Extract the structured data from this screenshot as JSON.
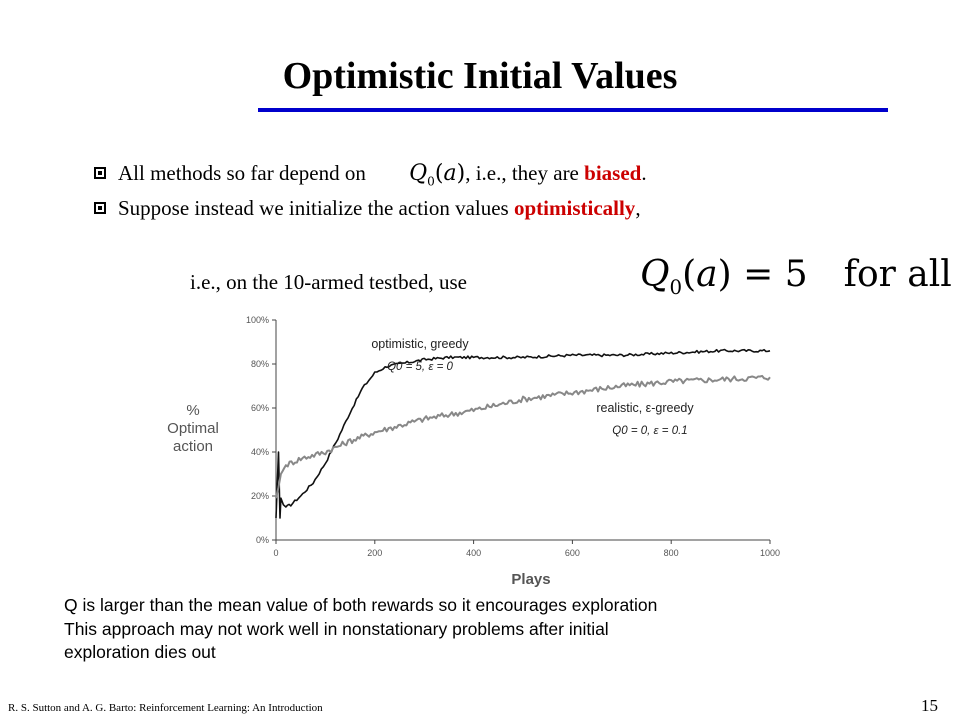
{
  "slide": {
    "title": "Optimistic Initial Values",
    "title_rule_color": "#0000cc",
    "emphasis_color": "#cc0000",
    "bullets": [
      {
        "before": "All methods so far depend on",
        "formula": "Q0(a)",
        "after": ", i.e., they are ",
        "emphasis": "biased",
        "end": "."
      },
      {
        "before": "Suppose instead we initialize the action values ",
        "emphasis": "optimistically",
        "end": ","
      }
    ],
    "ie_line": "i.e., on the 10-armed testbed, use",
    "big_formula": {
      "lhs": "Q0(a) = 5",
      "rhs": "for all a"
    },
    "notes": [
      "Q is larger than the mean value of both rewards so it encourages exploration",
      "This approach may not work well in nonstationary problems after initial",
      "exploration dies out"
    ],
    "footer": "R. S. Sutton and A. G. Barto: Reinforcement Learning: An Introduction",
    "page_number": "15"
  },
  "chart_data": {
    "type": "line",
    "xlabel": "Plays",
    "ylabel": [
      "%",
      "Optimal",
      "action"
    ],
    "xlim": [
      0,
      1000
    ],
    "ylim": [
      0,
      100
    ],
    "x_ticks": [
      "0",
      "200",
      "400",
      "600",
      "800",
      "1000"
    ],
    "y_ticks": [
      "0%",
      "20%",
      "40%",
      "60%",
      "80%",
      "100%"
    ],
    "series": [
      {
        "name": "optimistic, greedy",
        "params": "Q0 = 5, ε = 0",
        "color": "#111111",
        "x": [
          0,
          5,
          8,
          10,
          15,
          20,
          30,
          50,
          75,
          100,
          125,
          150,
          175,
          200,
          225,
          250,
          300,
          350,
          400,
          500,
          600,
          700,
          800,
          900,
          1000
        ],
        "y": [
          10,
          40,
          10,
          19,
          16,
          15,
          16,
          20,
          26,
          35,
          46,
          58,
          69,
          76,
          79,
          80,
          82,
          83,
          83,
          83,
          84,
          84,
          85,
          86,
          86
        ]
      },
      {
        "name": "realistic, ε-greedy",
        "params": "Q0 = 0, ε = 0.1",
        "color": "#888888",
        "x": [
          0,
          5,
          10,
          20,
          50,
          100,
          150,
          200,
          300,
          400,
          500,
          600,
          700,
          800,
          900,
          1000
        ],
        "y": [
          19,
          24,
          30,
          34,
          37,
          40,
          45,
          49,
          55,
          59,
          64,
          67,
          70,
          72,
          73,
          74
        ]
      }
    ]
  }
}
